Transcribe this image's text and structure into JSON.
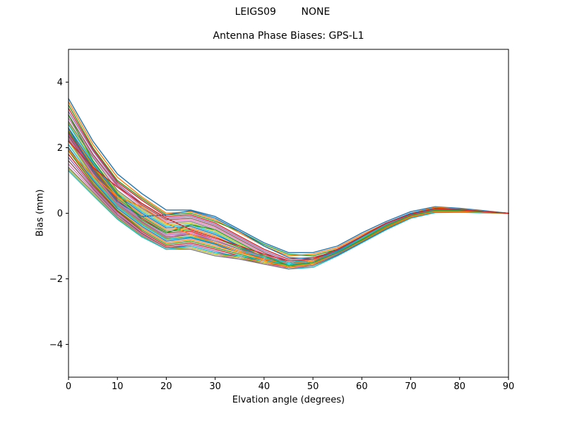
{
  "chart_data": {
    "type": "line",
    "suptitle": "LEIGS09        NONE",
    "title": "Antenna Phase Biases: GPS-L1",
    "xlabel": "Elvation angle (degrees)",
    "ylabel": "Bias (mm)",
    "xlim": [
      0,
      90
    ],
    "ylim": [
      -5,
      5
    ],
    "x_ticks": [
      0,
      10,
      20,
      30,
      40,
      50,
      60,
      70,
      80,
      90
    ],
    "y_ticks": [
      -4,
      -2,
      0,
      2,
      4
    ],
    "grid": false,
    "legend": "none",
    "background": "#ffffff",
    "axis_color": "#000000",
    "palette": [
      "#1f77b4",
      "#ff7f0e",
      "#2ca02c",
      "#d62728",
      "#9467bd",
      "#8c564b",
      "#e377c2",
      "#7f7f7f",
      "#bcbd22",
      "#17becf"
    ],
    "x": [
      0,
      5,
      10,
      15,
      20,
      25,
      30,
      35,
      40,
      45,
      50,
      55,
      60,
      65,
      70,
      75,
      80,
      85,
      90
    ],
    "series": [
      [
        3.5,
        2.2,
        1.2,
        0.6,
        0.1,
        0.1,
        -0.1,
        -0.5,
        -0.9,
        -1.2,
        -1.2,
        -1.0,
        -0.6,
        -0.25,
        0.05,
        0.2,
        0.15,
        0.08,
        0
      ],
      [
        3.4,
        2.1,
        1.1,
        0.5,
        0.0,
        0.05,
        -0.2,
        -0.6,
        -1.0,
        -1.3,
        -1.25,
        -1.05,
        -0.65,
        -0.3,
        0.0,
        0.18,
        0.13,
        0.06,
        0
      ],
      [
        3.3,
        2.0,
        1.0,
        0.45,
        -0.05,
        0.0,
        -0.25,
        -0.55,
        -0.95,
        -1.25,
        -1.3,
        -1.1,
        -0.7,
        -0.3,
        -0.02,
        0.15,
        0.12,
        0.05,
        0
      ],
      [
        3.2,
        1.95,
        0.95,
        0.4,
        -0.1,
        -0.05,
        -0.3,
        -0.7,
        -1.1,
        -1.4,
        -1.35,
        -1.15,
        -0.75,
        -0.35,
        -0.05,
        0.12,
        0.1,
        0.05,
        0
      ],
      [
        3.1,
        1.9,
        0.9,
        0.3,
        -0.15,
        -0.1,
        -0.35,
        -0.75,
        -1.15,
        -1.45,
        -1.4,
        -1.2,
        -0.8,
        -0.4,
        -0.08,
        0.1,
        0.08,
        0.04,
        0
      ],
      [
        3.0,
        1.8,
        0.85,
        0.25,
        -0.2,
        -0.15,
        -0.4,
        -0.8,
        -1.2,
        -1.5,
        -1.45,
        -1.2,
        -0.8,
        -0.4,
        -0.1,
        0.08,
        0.07,
        0.03,
        0
      ],
      [
        2.9,
        1.75,
        0.8,
        0.2,
        -0.25,
        -0.2,
        -0.45,
        -0.85,
        -1.25,
        -1.55,
        -1.5,
        -1.25,
        -0.85,
        -0.45,
        -0.1,
        0.06,
        0.06,
        0.03,
        0
      ],
      [
        2.8,
        1.7,
        0.7,
        0.15,
        -0.3,
        -0.25,
        -0.5,
        -0.9,
        -1.3,
        -1.6,
        -1.55,
        -1.3,
        -0.9,
        -0.5,
        -0.12,
        0.05,
        0.05,
        0.02,
        0
      ],
      [
        2.75,
        1.6,
        0.65,
        0.1,
        -0.35,
        -0.3,
        -0.55,
        -0.95,
        -1.35,
        -1.65,
        -1.6,
        -1.3,
        -0.9,
        -0.5,
        -0.15,
        0.03,
        0.04,
        0.02,
        0
      ],
      [
        2.7,
        1.55,
        0.6,
        0.05,
        -0.4,
        -0.35,
        -0.6,
        -1.0,
        -1.4,
        -1.7,
        -1.65,
        -1.3,
        -0.9,
        -0.5,
        -0.15,
        0.02,
        0.03,
        0.01,
        0
      ],
      [
        2.6,
        1.5,
        0.55,
        0.0,
        -0.45,
        -0.4,
        -0.65,
        -1.0,
        -1.35,
        -1.6,
        -1.6,
        -1.28,
        -0.88,
        -0.48,
        -0.13,
        0.04,
        0.04,
        0.02,
        0
      ],
      [
        2.55,
        1.45,
        0.5,
        -0.05,
        -0.5,
        -0.45,
        -0.7,
        -1.05,
        -1.4,
        -1.65,
        -1.6,
        -1.25,
        -0.85,
        -0.45,
        -0.12,
        0.05,
        0.05,
        0.02,
        0
      ],
      [
        2.5,
        1.4,
        0.45,
        -0.1,
        -0.55,
        -0.5,
        -0.75,
        -1.05,
        -1.35,
        -1.55,
        -1.55,
        -1.22,
        -0.82,
        -0.42,
        -0.1,
        0.07,
        0.06,
        0.03,
        0
      ],
      [
        2.45,
        1.35,
        0.4,
        -0.15,
        -0.6,
        -0.55,
        -0.8,
        -1.1,
        -1.4,
        -1.6,
        -1.5,
        -1.2,
        -0.8,
        -0.4,
        -0.1,
        0.08,
        0.07,
        0.03,
        0
      ],
      [
        2.4,
        1.3,
        0.35,
        -0.2,
        -0.65,
        -0.6,
        -0.85,
        -1.1,
        -1.35,
        -1.55,
        -1.45,
        -1.18,
        -0.78,
        -0.38,
        -0.08,
        0.1,
        0.08,
        0.04,
        0
      ],
      [
        2.35,
        1.25,
        0.3,
        -0.25,
        -0.7,
        -0.65,
        -0.9,
        -1.15,
        -1.4,
        -1.6,
        -1.5,
        -1.2,
        -0.8,
        -0.4,
        -0.1,
        0.08,
        0.07,
        0.03,
        0
      ],
      [
        2.3,
        1.2,
        0.28,
        -0.28,
        -0.72,
        -0.6,
        -0.8,
        -1.1,
        -1.35,
        -1.55,
        -1.5,
        -1.2,
        -0.78,
        -0.38,
        -0.08,
        0.1,
        0.09,
        0.04,
        0
      ],
      [
        2.25,
        1.15,
        0.25,
        -0.3,
        -0.75,
        -0.65,
        -0.85,
        -1.1,
        -1.3,
        -1.5,
        -1.45,
        -1.15,
        -0.75,
        -0.35,
        -0.07,
        0.11,
        0.09,
        0.04,
        0
      ],
      [
        2.2,
        1.1,
        0.22,
        -0.32,
        -0.78,
        -0.7,
        -0.9,
        -1.15,
        -1.35,
        -1.5,
        -1.4,
        -1.12,
        -0.72,
        -0.33,
        -0.05,
        0.12,
        0.1,
        0.05,
        0
      ],
      [
        2.1,
        1.05,
        0.2,
        -0.35,
        -0.8,
        -0.72,
        -0.92,
        -1.15,
        -1.35,
        -1.5,
        -1.4,
        -1.1,
        -0.7,
        -0.3,
        -0.05,
        0.13,
        0.1,
        0.05,
        0
      ],
      [
        2.0,
        1.0,
        0.15,
        -0.4,
        -0.85,
        -0.75,
        -0.95,
        -1.2,
        -1.4,
        -1.55,
        -1.45,
        -1.12,
        -0.72,
        -0.32,
        -0.05,
        0.12,
        0.1,
        0.05,
        0
      ],
      [
        1.95,
        0.95,
        0.1,
        -0.45,
        -0.9,
        -0.8,
        -1.0,
        -1.2,
        -1.4,
        -1.55,
        -1.45,
        -1.1,
        -0.7,
        -0.3,
        -0.04,
        0.13,
        0.1,
        0.05,
        0
      ],
      [
        1.9,
        0.9,
        0.08,
        -0.5,
        -0.95,
        -0.85,
        -1.05,
        -1.25,
        -1.45,
        -1.6,
        -1.5,
        -1.15,
        -0.72,
        -0.32,
        -0.05,
        0.12,
        0.1,
        0.05,
        0
      ],
      [
        1.8,
        0.85,
        0.05,
        -0.55,
        -1.0,
        -0.9,
        -1.1,
        -1.3,
        -1.5,
        -1.65,
        -1.55,
        -1.18,
        -0.75,
        -0.35,
        -0.06,
        0.1,
        0.09,
        0.04,
        0
      ],
      [
        1.7,
        0.8,
        0.0,
        -0.6,
        -1.05,
        -0.95,
        -1.15,
        -1.35,
        -1.5,
        -1.6,
        -1.5,
        -1.15,
        -0.72,
        -0.32,
        -0.05,
        0.1,
        0.08,
        0.04,
        0
      ],
      [
        1.6,
        0.75,
        -0.05,
        -0.62,
        -1.05,
        -1.0,
        -1.2,
        -1.35,
        -1.55,
        -1.65,
        -1.55,
        -1.2,
        -0.75,
        -0.35,
        -0.07,
        0.08,
        0.07,
        0.03,
        0
      ],
      [
        1.5,
        0.7,
        -0.1,
        -0.65,
        -1.1,
        -1.05,
        -1.25,
        -1.4,
        -1.55,
        -1.65,
        -1.6,
        -1.22,
        -0.78,
        -0.38,
        -0.08,
        0.06,
        0.06,
        0.03,
        0
      ],
      [
        1.4,
        0.65,
        -0.12,
        -0.68,
        -1.1,
        -1.1,
        -1.3,
        -1.4,
        -1.55,
        -1.7,
        -1.6,
        -1.25,
        -0.8,
        -0.4,
        -0.1,
        0.05,
        0.05,
        0.02,
        0
      ],
      [
        1.35,
        0.6,
        -0.15,
        -0.7,
        -1.1,
        -1.05,
        -1.25,
        -1.35,
        -1.5,
        -1.6,
        -1.55,
        -1.2,
        -0.78,
        -0.38,
        -0.09,
        0.06,
        0.06,
        0.03,
        0
      ],
      [
        1.3,
        0.55,
        -0.18,
        -0.72,
        -1.1,
        -1.0,
        -1.2,
        -1.3,
        -1.45,
        -1.55,
        -1.5,
        -1.18,
        -0.75,
        -0.36,
        -0.08,
        0.07,
        0.06,
        0.03,
        0
      ],
      [
        2.6,
        1.3,
        0.35,
        -0.1,
        -0.05,
        0.08,
        -0.15,
        -0.55,
        -1.0,
        -1.35,
        -1.4,
        -1.15,
        -0.72,
        -0.3,
        0.0,
        0.15,
        0.12,
        0.05,
        0
      ],
      [
        1.9,
        1.15,
        0.5,
        0.2,
        -0.3,
        -0.65,
        -0.9,
        -1.15,
        -1.45,
        -1.65,
        -1.55,
        -1.2,
        -0.8,
        -0.4,
        -0.1,
        0.05,
        0.05,
        0.02,
        0
      ],
      [
        3.0,
        1.6,
        0.6,
        -0.2,
        -0.6,
        -0.35,
        -0.5,
        -0.9,
        -1.3,
        -1.6,
        -1.5,
        -1.2,
        -0.8,
        -0.38,
        -0.07,
        0.09,
        0.08,
        0.04,
        0
      ],
      [
        2.2,
        1.4,
        0.8,
        0.3,
        -0.15,
        -0.5,
        -0.75,
        -1.0,
        -1.25,
        -1.45,
        -1.4,
        -1.1,
        -0.7,
        -0.3,
        -0.03,
        0.14,
        0.11,
        0.05,
        0
      ]
    ]
  }
}
